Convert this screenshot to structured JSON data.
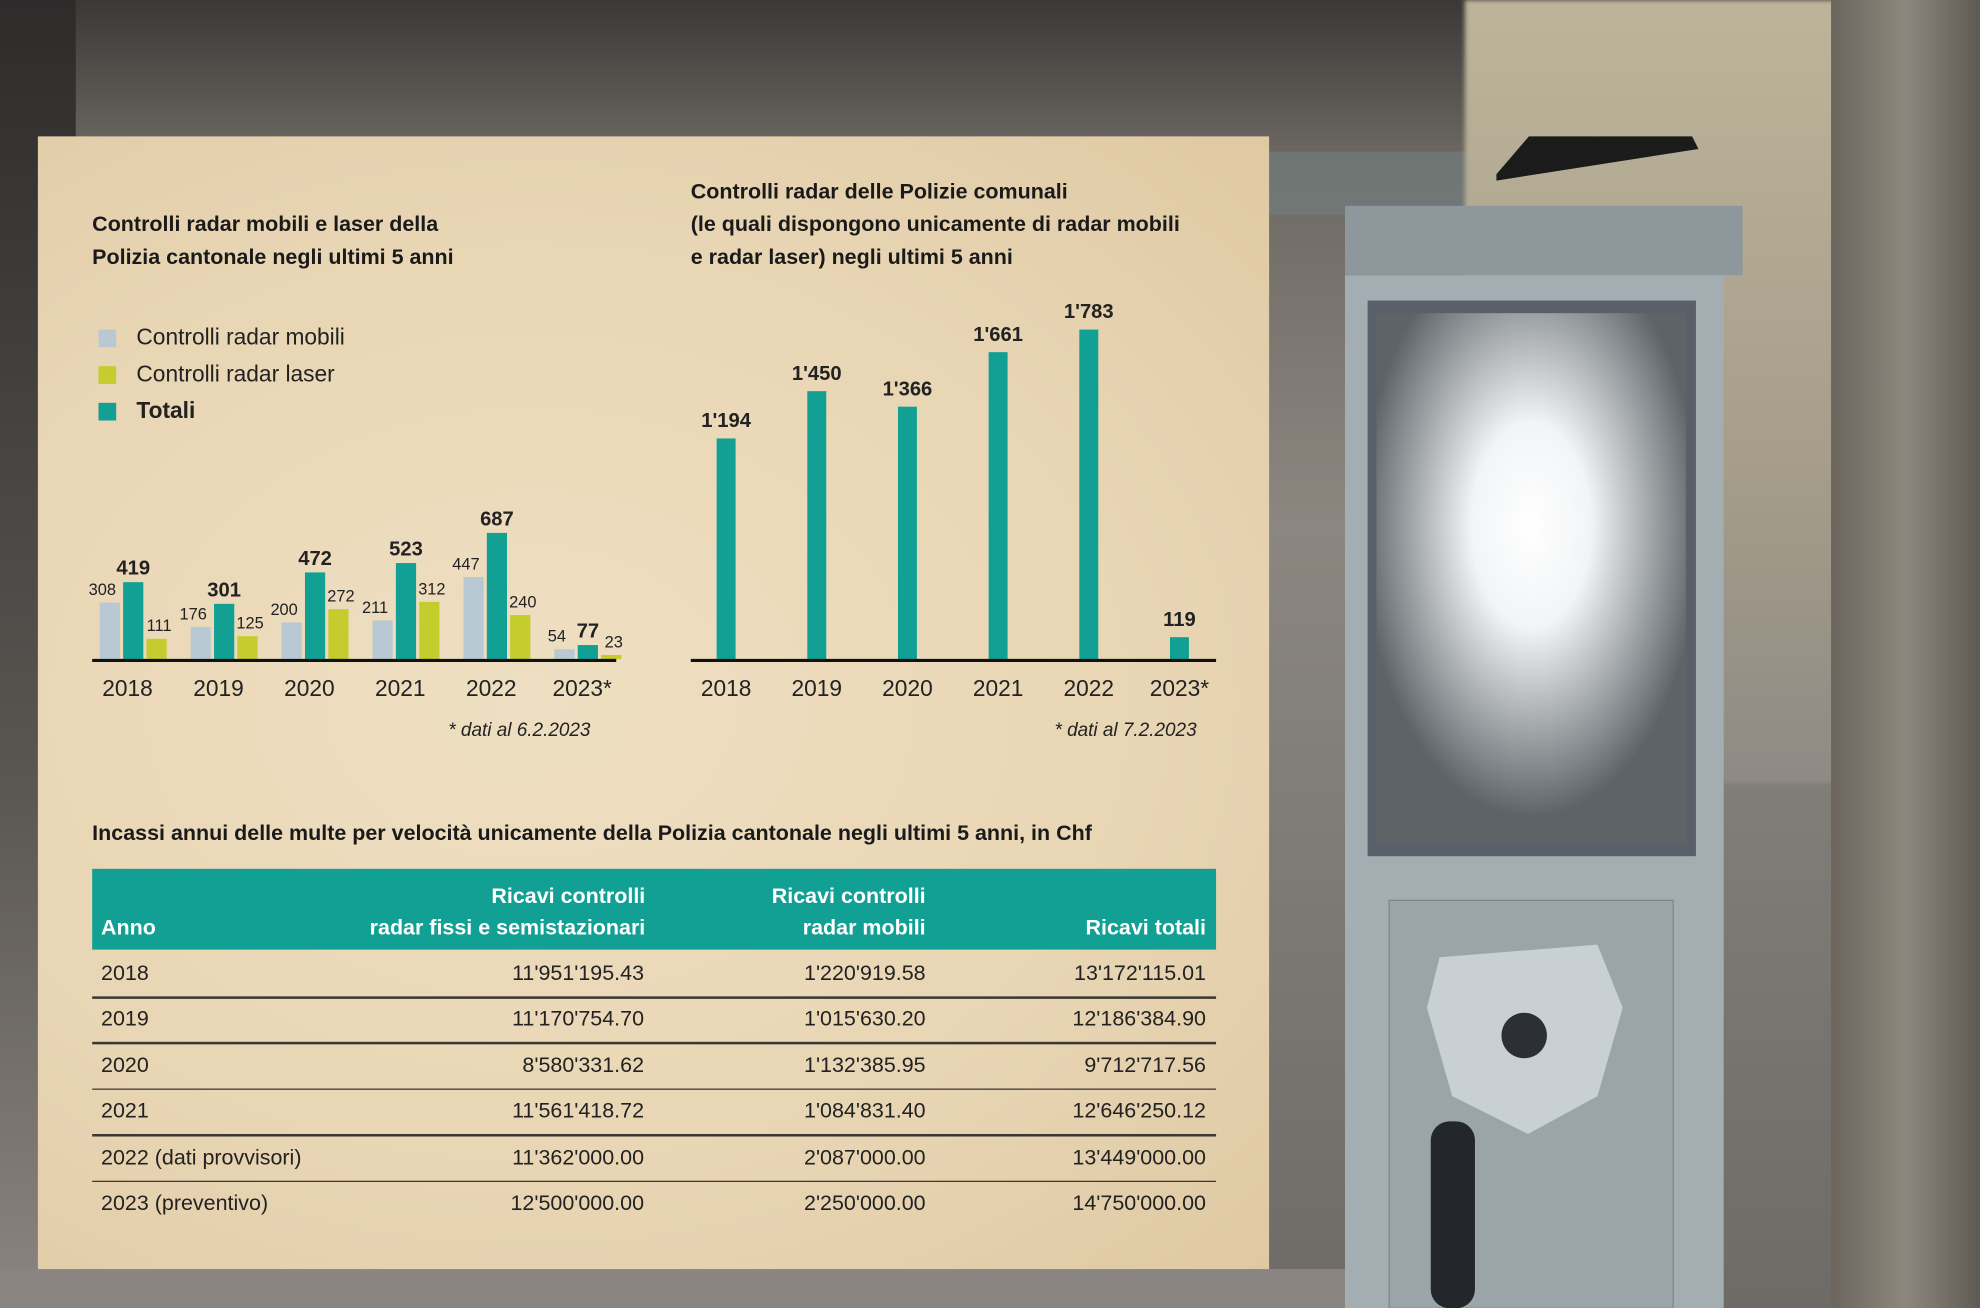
{
  "colors": {
    "mobile": "#b9c9d3",
    "laser": "#c4cc2e",
    "total": "#12a094",
    "panel": "#e9d6b4"
  },
  "left_chart_title": [
    "Controlli radar mobili e laser della",
    "Polizia cantonale negli ultimi 5 anni"
  ],
  "right_chart_title": [
    "Controlli radar delle Polizie comunali",
    "(le quali dispongono unicamente di radar mobili",
    "e radar laser) negli ultimi 5 anni"
  ],
  "left_note": "* dati al 6.2.2023",
  "right_note": "* dati al 7.2.2023",
  "table_title": "Incassi annui delle multe per velocità unicamente della Polizia cantonale negli ultimi 5 anni, in Chf",
  "chart_data": [
    {
      "type": "bar",
      "title": "Controlli radar mobili e laser della Polizia cantonale negli ultimi 5 anni",
      "categories": [
        "2018",
        "2019",
        "2020",
        "2021",
        "2022",
        "2023*"
      ],
      "legend": [
        "Controlli radar mobili",
        "Controlli radar laser",
        "Totali"
      ],
      "legend_position": "top-left",
      "series": [
        {
          "name": "Controlli radar mobili",
          "values": [
            308,
            176,
            200,
            211,
            447,
            54
          ]
        },
        {
          "name": "Totali",
          "values": [
            419,
            301,
            472,
            523,
            687,
            77
          ]
        },
        {
          "name": "Controlli radar laser",
          "values": [
            111,
            125,
            272,
            312,
            240,
            23
          ]
        }
      ],
      "ylim": [
        0,
        687
      ]
    },
    {
      "type": "bar",
      "title": "Controlli radar delle Polizie comunali (le quali dispongono unicamente di radar mobili e radar laser) negli ultimi 5 anni",
      "categories": [
        "2018",
        "2019",
        "2020",
        "2021",
        "2022",
        "2023*"
      ],
      "values": [
        1194,
        1450,
        1366,
        1661,
        1783,
        119
      ],
      "labels": [
        "1'194",
        "1'450",
        "1'366",
        "1'661",
        "1'783",
        "119"
      ],
      "ylim": [
        0,
        1783
      ]
    }
  ],
  "table": {
    "headers": [
      [
        "",
        "Anno"
      ],
      [
        "Ricavi controlli",
        "radar fissi e semistazionari"
      ],
      [
        "Ricavi controlli",
        "radar mobili"
      ],
      [
        "",
        "Ricavi totali"
      ]
    ],
    "rows": [
      [
        "2018",
        "11'951'195.43",
        "1'220'919.58",
        "13'172'115.01"
      ],
      [
        "2019",
        "11'170'754.70",
        "1'015'630.20",
        "12'186'384.90"
      ],
      [
        "2020",
        "8'580'331.62",
        "1'132'385.95",
        "9'712'717.56"
      ],
      [
        "2021",
        "11'561'418.72",
        "1'084'831.40",
        "12'646'250.12"
      ],
      [
        "2022 (dati provvisori)",
        "11'362'000.00",
        "2'087'000.00",
        "13'449'000.00"
      ],
      [
        "2023 (preventivo)",
        "12'500'000.00",
        "2'250'000.00",
        "14'750'000.00"
      ]
    ]
  }
}
